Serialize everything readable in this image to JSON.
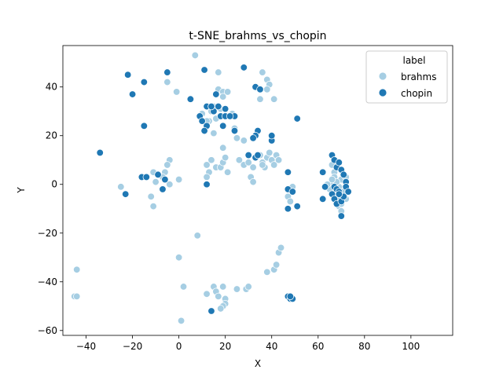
{
  "chart_data": {
    "type": "scatter",
    "title": "t-SNE_brahms_vs_chopin",
    "xlabel": "X",
    "ylabel": "Y",
    "xlim": [
      -50,
      118
    ],
    "ylim": [
      -62,
      57
    ],
    "xticks": [
      -40,
      -20,
      0,
      20,
      40,
      60,
      80,
      100
    ],
    "yticks": [
      -60,
      -40,
      -20,
      0,
      20,
      40
    ],
    "grid": false,
    "legend": {
      "title": "label",
      "placement": "top-right"
    },
    "colors": {
      "brahms": "#a6cee3",
      "chopin": "#1f78b4"
    },
    "series": [
      {
        "name": "brahms",
        "points": [
          [
            7,
            53
          ],
          [
            17,
            46
          ],
          [
            36,
            46
          ],
          [
            -5,
            42
          ],
          [
            -1,
            38
          ],
          [
            38,
            43
          ],
          [
            39,
            41
          ],
          [
            38,
            39
          ],
          [
            17,
            39
          ],
          [
            19,
            38
          ],
          [
            21,
            38
          ],
          [
            19,
            36
          ],
          [
            41,
            35
          ],
          [
            35,
            35
          ],
          [
            15,
            32
          ],
          [
            18,
            31
          ],
          [
            22,
            28
          ],
          [
            10,
            29
          ],
          [
            13,
            26
          ],
          [
            16,
            27
          ],
          [
            24,
            23
          ],
          [
            25,
            19
          ],
          [
            28,
            18
          ],
          [
            19,
            15
          ],
          [
            15,
            21
          ],
          [
            12,
            26
          ],
          [
            23,
            29
          ],
          [
            14,
            30
          ],
          [
            -4,
            10
          ],
          [
            -5,
            8
          ],
          [
            -6,
            5
          ],
          [
            -7,
            3
          ],
          [
            -10,
            1
          ],
          [
            -11,
            5
          ],
          [
            -4,
            0
          ],
          [
            -25,
            -1
          ],
          [
            -12,
            -5
          ],
          [
            -11,
            -9
          ],
          [
            0,
            2
          ],
          [
            12,
            8
          ],
          [
            13,
            5
          ],
          [
            12,
            3
          ],
          [
            14,
            10
          ],
          [
            16,
            7
          ],
          [
            18,
            7
          ],
          [
            21,
            5
          ],
          [
            19,
            9
          ],
          [
            20,
            11
          ],
          [
            26,
            10
          ],
          [
            28,
            8
          ],
          [
            30,
            9
          ],
          [
            32,
            7
          ],
          [
            31,
            3
          ],
          [
            32,
            1
          ],
          [
            35,
            12
          ],
          [
            36,
            9
          ],
          [
            37,
            7
          ],
          [
            38,
            11
          ],
          [
            39,
            13
          ],
          [
            40,
            10
          ],
          [
            41,
            8
          ],
          [
            42,
            12
          ],
          [
            43,
            10
          ],
          [
            36,
            8
          ],
          [
            47,
            -5
          ],
          [
            48,
            -7
          ],
          [
            48,
            -2
          ],
          [
            49,
            -1
          ],
          [
            66,
            8
          ],
          [
            67,
            5
          ],
          [
            67,
            3
          ],
          [
            66,
            0
          ],
          [
            68,
            -2
          ],
          [
            68,
            -4
          ],
          [
            67,
            -5
          ],
          [
            69,
            -6
          ],
          [
            69,
            -9
          ],
          [
            70,
            -11
          ],
          [
            69,
            -1
          ],
          [
            71,
            -3
          ],
          [
            72,
            -6
          ],
          [
            65,
            -2
          ],
          [
            70,
            2
          ],
          [
            72,
            3
          ],
          [
            68,
            1
          ],
          [
            66,
            2
          ],
          [
            70,
            -8
          ],
          [
            64,
            0
          ],
          [
            8,
            -21
          ],
          [
            0,
            -30
          ],
          [
            -44,
            -35
          ],
          [
            -45,
            -46
          ],
          [
            -44,
            -46
          ],
          [
            2,
            -42
          ],
          [
            12,
            -45
          ],
          [
            15,
            -42
          ],
          [
            16,
            -44
          ],
          [
            17,
            -46
          ],
          [
            19,
            -42
          ],
          [
            20,
            -47
          ],
          [
            20,
            -49
          ],
          [
            19,
            -50
          ],
          [
            18,
            -51
          ],
          [
            25,
            -43
          ],
          [
            29,
            -43
          ],
          [
            30,
            -42
          ],
          [
            38,
            -36
          ],
          [
            41,
            -35
          ],
          [
            43,
            -28
          ],
          [
            44,
            -26
          ],
          [
            42,
            -33
          ],
          [
            1,
            -56
          ]
        ]
      },
      {
        "name": "chopin",
        "points": [
          [
            -22,
            45
          ],
          [
            -5,
            46
          ],
          [
            11,
            47
          ],
          [
            28,
            48
          ],
          [
            -15,
            42
          ],
          [
            -20,
            37
          ],
          [
            33,
            40
          ],
          [
            35,
            39
          ],
          [
            16,
            37
          ],
          [
            5,
            35
          ],
          [
            12,
            32
          ],
          [
            17,
            32
          ],
          [
            20,
            31
          ],
          [
            15,
            30
          ],
          [
            14,
            32
          ],
          [
            18,
            28
          ],
          [
            20,
            28
          ],
          [
            24,
            28
          ],
          [
            22,
            28
          ],
          [
            9,
            28
          ],
          [
            10,
            26
          ],
          [
            12,
            24
          ],
          [
            11,
            22
          ],
          [
            19,
            24
          ],
          [
            24,
            22
          ],
          [
            34,
            22
          ],
          [
            33,
            20
          ],
          [
            32,
            19
          ],
          [
            40,
            18
          ],
          [
            40,
            20
          ],
          [
            51,
            27
          ],
          [
            -15,
            24
          ],
          [
            -34,
            13
          ],
          [
            30,
            12
          ],
          [
            33,
            11
          ],
          [
            34,
            12
          ],
          [
            -16,
            3
          ],
          [
            -14,
            3
          ],
          [
            -9,
            4
          ],
          [
            -6,
            2
          ],
          [
            -7,
            -2
          ],
          [
            -23,
            -4
          ],
          [
            12,
            0
          ],
          [
            47,
            5
          ],
          [
            47,
            -2
          ],
          [
            49,
            -3
          ],
          [
            47,
            -10
          ],
          [
            51,
            -9
          ],
          [
            62,
            5
          ],
          [
            62,
            -6
          ],
          [
            63,
            -1
          ],
          [
            66,
            12
          ],
          [
            67,
            10
          ],
          [
            68,
            7
          ],
          [
            69,
            9
          ],
          [
            70,
            6
          ],
          [
            71,
            4
          ],
          [
            72,
            1
          ],
          [
            72,
            -1
          ],
          [
            73,
            -3
          ],
          [
            67,
            -1
          ],
          [
            68,
            -2
          ],
          [
            69,
            -3
          ],
          [
            66,
            -4
          ],
          [
            67,
            -6
          ],
          [
            68,
            -8
          ],
          [
            70,
            -7
          ],
          [
            70,
            -13
          ],
          [
            71,
            -5
          ],
          [
            69,
            -4
          ],
          [
            14,
            -52
          ],
          [
            47,
            -46
          ],
          [
            48,
            -47
          ],
          [
            49,
            -47
          ],
          [
            48,
            -46
          ]
        ]
      }
    ]
  }
}
